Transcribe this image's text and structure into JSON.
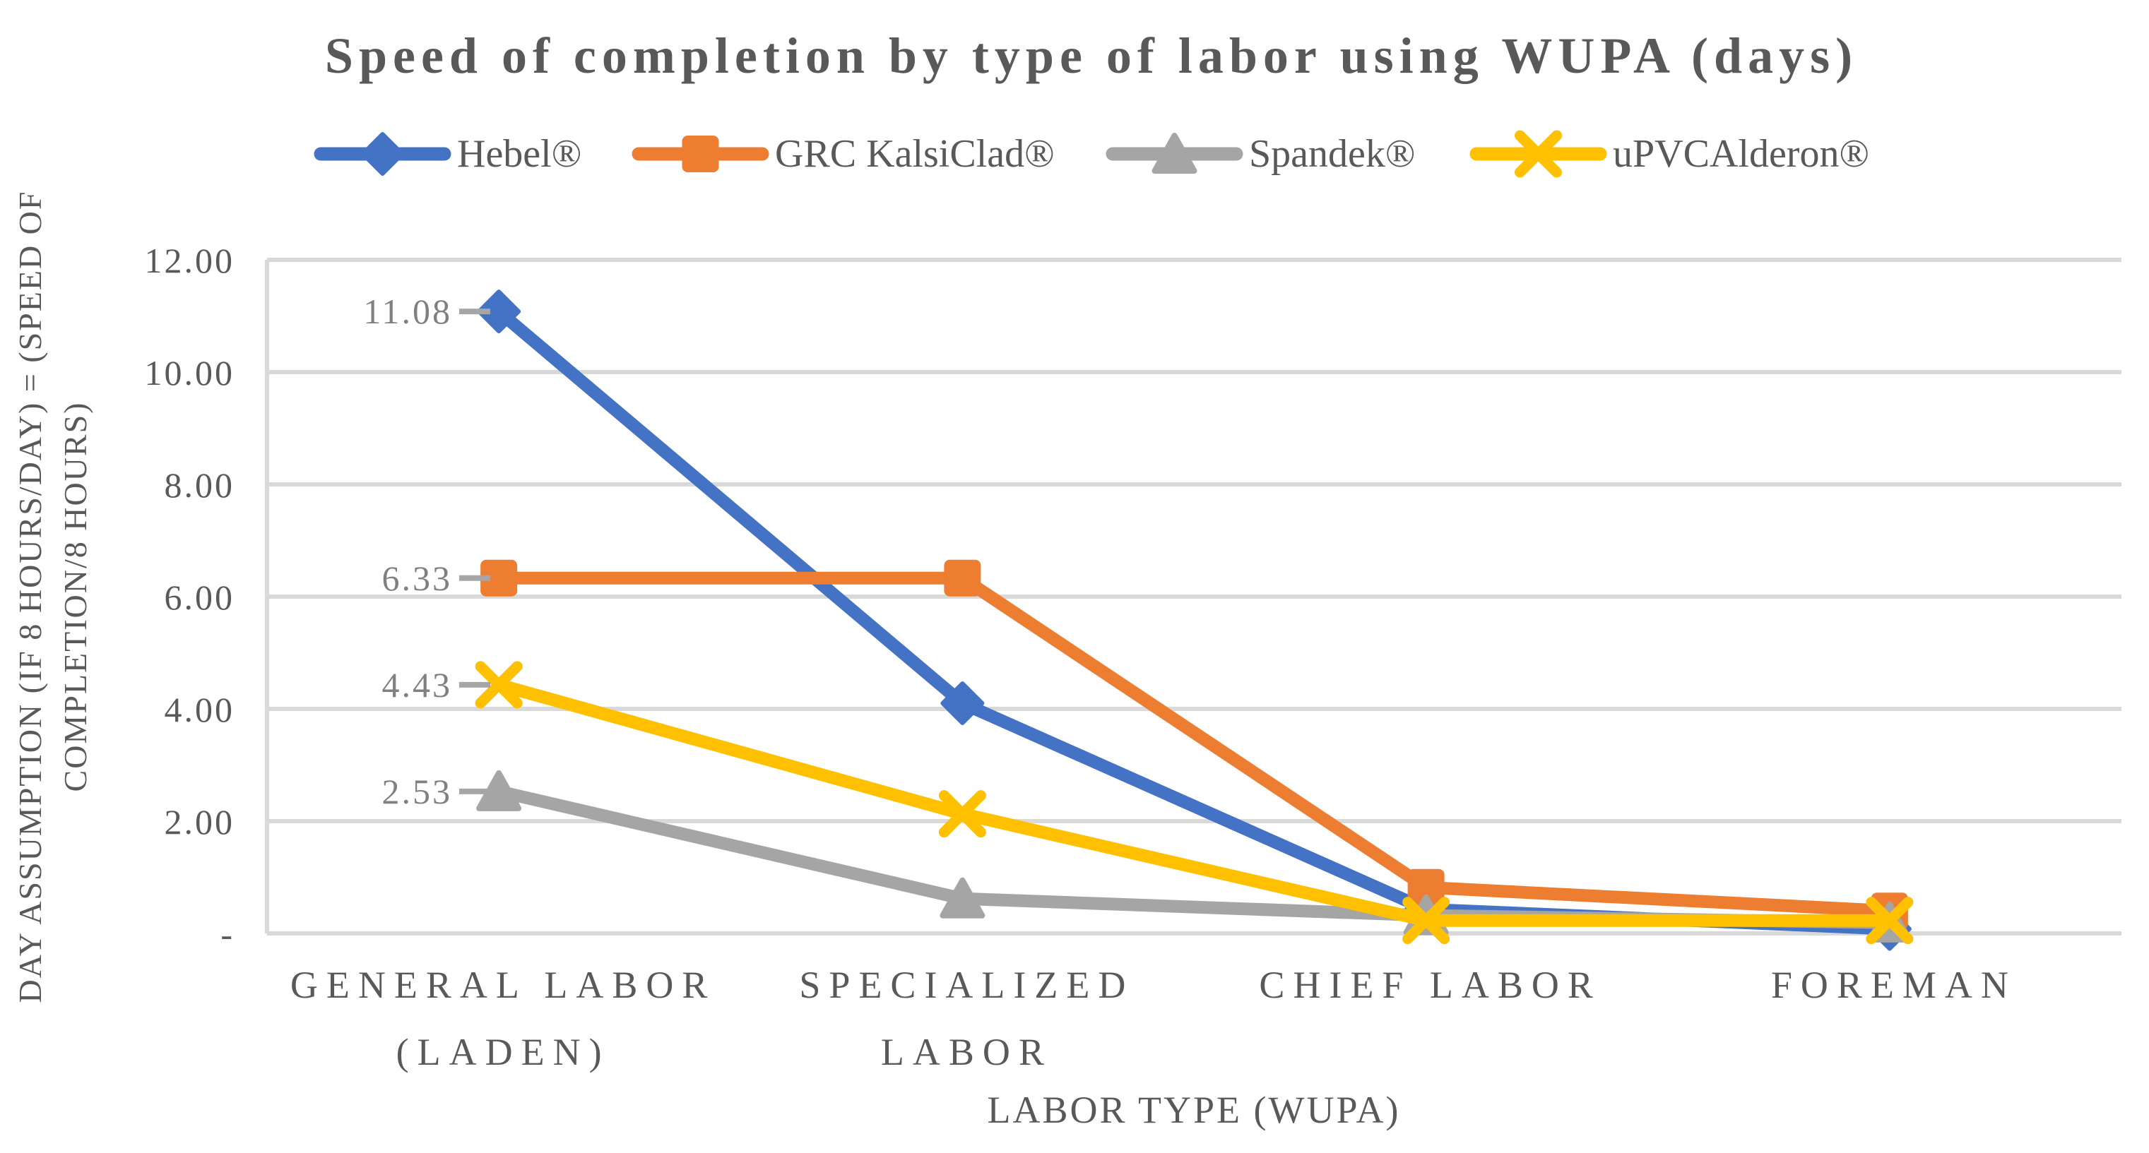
{
  "chart_data": {
    "type": "line",
    "title": "Speed of completion by type of labor using WUPA (days)",
    "xlabel": "LABOR TYPE (WUPA)",
    "ylabel_lines": [
      "DAY ASSUMPTION (IF 8 HOURS/DAY) = (SPEED OF",
      "COMPLETION/8 HOURS)"
    ],
    "categories": [
      [
        "GENERAL LABOR",
        "(LADEN)"
      ],
      [
        "SPECIALIZED",
        "LABOR"
      ],
      [
        "CHIEF LABOR"
      ],
      [
        "FOREMAN"
      ]
    ],
    "series": [
      {
        "name": "Hebel®",
        "color": "#4472C4",
        "marker": "diamond",
        "values": [
          11.08,
          4.1,
          0.43,
          0.08
        ],
        "first_label": "11.08"
      },
      {
        "name": "GRC KalsiClad®",
        "color": "#ED7D31",
        "marker": "square",
        "values": [
          6.33,
          6.33,
          0.82,
          0.4
        ],
        "first_label": "6.33"
      },
      {
        "name": "Spandek®",
        "color": "#A5A5A5",
        "marker": "triangle",
        "values": [
          2.53,
          0.62,
          0.32,
          0.19
        ],
        "first_label": "2.53"
      },
      {
        "name": "uPVCAlderon®",
        "color": "#FFC000",
        "marker": "x",
        "values": [
          4.43,
          2.13,
          0.23,
          0.23
        ],
        "first_label": "4.43"
      }
    ],
    "y_ticks": [
      {
        "label": "12.00",
        "value": 12
      },
      {
        "label": "10.00",
        "value": 10
      },
      {
        "label": "8.00",
        "value": 8
      },
      {
        "label": "6.00",
        "value": 6
      },
      {
        "label": "4.00",
        "value": 4
      },
      {
        "label": "2.00",
        "value": 2
      },
      {
        "label": "-",
        "value": 0
      }
    ],
    "ylim": [
      0,
      12
    ],
    "grid": true,
    "legend_position": "top",
    "colors": {
      "gridline": "#D9D9D9",
      "axis_text": "#595959",
      "data_label_text": "#808080",
      "leader_line": "#A6A6A6",
      "background": "#FFFFFF"
    }
  }
}
